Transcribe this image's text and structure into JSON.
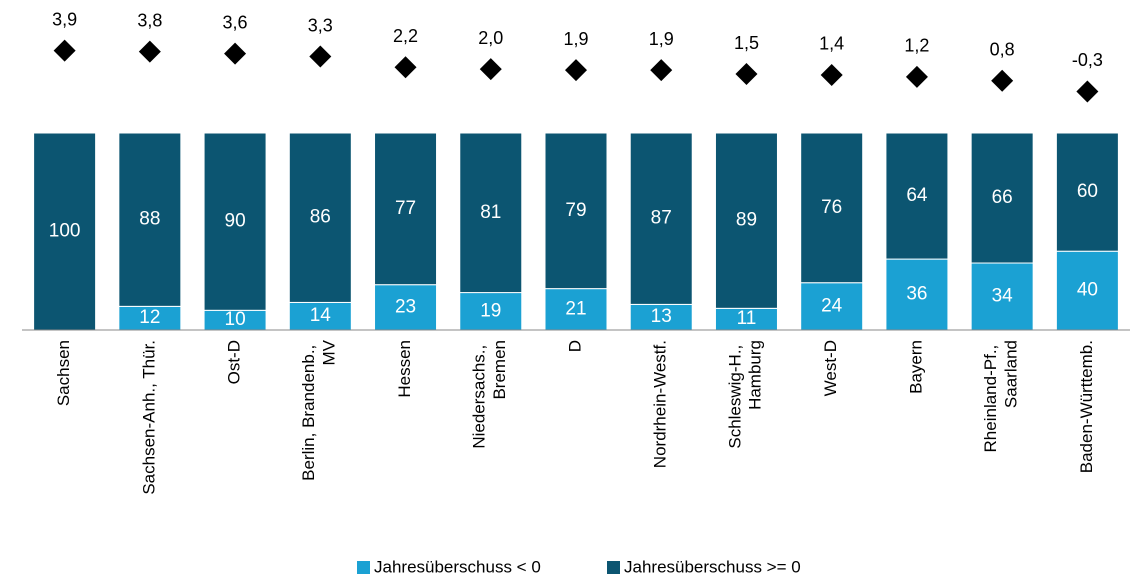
{
  "chart_data": {
    "type": "bar",
    "stacked": true,
    "categories": [
      "Sachsen",
      "Sachsen-Anh., Thür.",
      "Ost-D",
      "Berlin, Brandenb., MV",
      "Hessen",
      "Niedersachs., Bremen",
      "D",
      "Nordrhein-Westf.",
      "Schleswig-H., Hamburg",
      "West-D",
      "Bayern",
      "Rheinland-Pf., Saarland",
      "Baden-Württemb."
    ],
    "series": [
      {
        "name": "Jahresüberschuss < 0",
        "color": "#1ba1d3",
        "values": [
          0,
          12,
          10,
          14,
          23,
          19,
          21,
          13,
          11,
          24,
          36,
          34,
          40
        ]
      },
      {
        "name": "Jahresüberschuss >= 0",
        "color": "#0c5571",
        "values": [
          100,
          88,
          90,
          86,
          77,
          81,
          79,
          87,
          89,
          76,
          64,
          66,
          60
        ]
      },
      {
        "type": "scatter",
        "axis": "y2",
        "color": "#000000",
        "values": [
          3.9,
          3.8,
          3.6,
          3.3,
          2.2,
          2.0,
          1.9,
          1.9,
          1.5,
          1.4,
          1.2,
          0.8,
          -0.3
        ],
        "value_labels": [
          "3,9",
          "3,8",
          "3,6",
          "3,3",
          "2,2",
          "2,0",
          "1,9",
          "1,9",
          "1,5",
          "1,4",
          "1,2",
          "0,8",
          "-0,3"
        ]
      }
    ],
    "ylim": [
      0,
      100
    ],
    "y2lim": [
      -2,
      5
    ],
    "legend": "bottom"
  }
}
